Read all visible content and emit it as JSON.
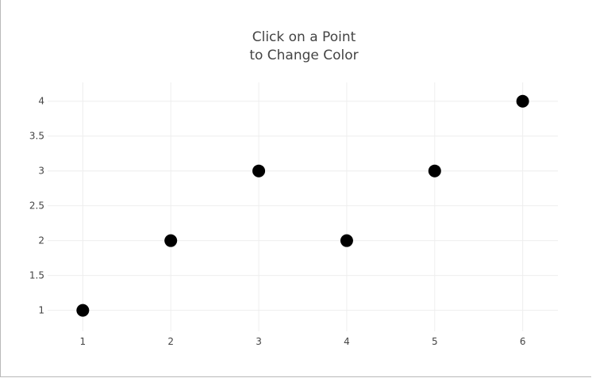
{
  "chart_data": {
    "type": "scatter",
    "title_lines": [
      "Click on a Point",
      "to Change Color"
    ],
    "x": [
      1,
      2,
      3,
      4,
      5,
      6
    ],
    "y": [
      1,
      2,
      3,
      2,
      3,
      4
    ],
    "x_ticks": [
      "1",
      "2",
      "3",
      "4",
      "5",
      "6"
    ],
    "y_ticks": [
      "1",
      "1.5",
      "2",
      "2.5",
      "3",
      "3.5",
      "4"
    ],
    "xlim": [
      0.6,
      6.4
    ],
    "ylim": [
      0.7,
      4.27
    ],
    "grid": true,
    "marker_color": "#000000"
  }
}
